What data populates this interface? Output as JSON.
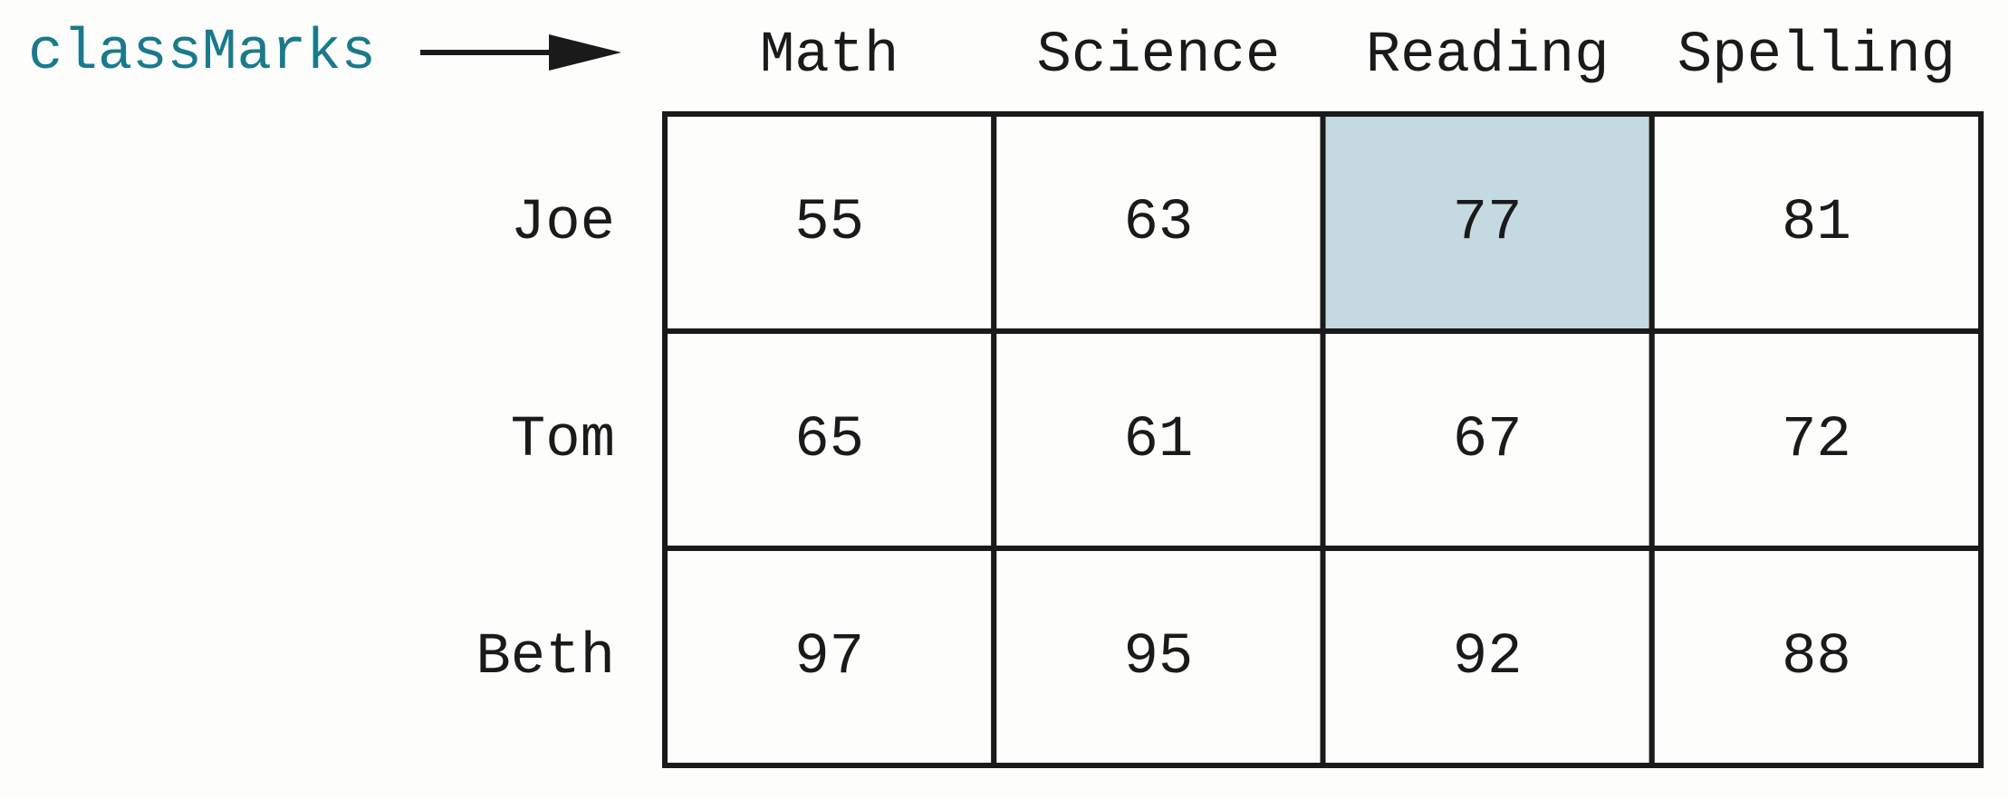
{
  "label": "classMarks",
  "columns": [
    "Math",
    "Science",
    "Reading",
    "Spelling"
  ],
  "rows": [
    {
      "name": "Joe",
      "values": [
        55,
        63,
        77,
        81
      ]
    },
    {
      "name": "Tom",
      "values": [
        65,
        61,
        67,
        72
      ]
    },
    {
      "name": "Beth",
      "values": [
        97,
        95,
        92,
        88
      ]
    }
  ]
}
